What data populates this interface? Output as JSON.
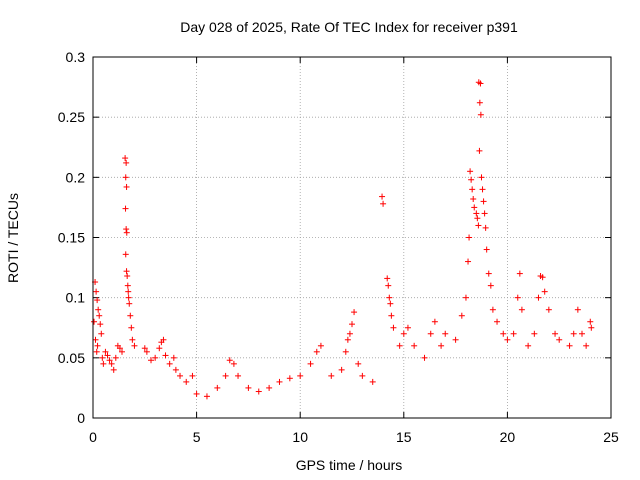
{
  "chart_data": {
    "type": "scatter",
    "title": "Day 028 of 2025, Rate Of TEC Index for receiver p391",
    "xlabel": "GPS time / hours",
    "ylabel": "ROTI / TECUs",
    "xlim": [
      0,
      25
    ],
    "ylim": [
      0,
      0.3
    ],
    "x_ticks": [
      0,
      5,
      10,
      15,
      20,
      25
    ],
    "y_ticks": [
      0,
      0.05,
      0.1,
      0.15,
      0.2,
      0.25,
      0.3
    ],
    "x_tick_labels": [
      "0",
      "5",
      "10",
      "15",
      "20",
      "25"
    ],
    "y_tick_labels": [
      "0",
      "0.05",
      "0.1",
      "0.15",
      "0.2",
      "0.25",
      "0.3"
    ],
    "grid": true,
    "marker": "+",
    "marker_color": "#ff0000",
    "series": [
      {
        "name": "ROTI",
        "points": [
          [
            0.1,
            0.113
          ],
          [
            0.15,
            0.105
          ],
          [
            0.2,
            0.098
          ],
          [
            0.25,
            0.09
          ],
          [
            0.3,
            0.085
          ],
          [
            0.05,
            0.08
          ],
          [
            0.35,
            0.078
          ],
          [
            0.4,
            0.07
          ],
          [
            0.12,
            0.065
          ],
          [
            0.22,
            0.06
          ],
          [
            0.18,
            0.055
          ],
          [
            0.45,
            0.05
          ],
          [
            0.5,
            0.045
          ],
          [
            0.6,
            0.055
          ],
          [
            0.7,
            0.052
          ],
          [
            0.8,
            0.048
          ],
          [
            0.9,
            0.045
          ],
          [
            1.0,
            0.04
          ],
          [
            1.1,
            0.05
          ],
          [
            1.2,
            0.06
          ],
          [
            1.3,
            0.058
          ],
          [
            1.4,
            0.055
          ],
          [
            1.55,
            0.216
          ],
          [
            1.6,
            0.212
          ],
          [
            1.58,
            0.2
          ],
          [
            1.62,
            0.192
          ],
          [
            1.57,
            0.174
          ],
          [
            1.6,
            0.157
          ],
          [
            1.63,
            0.154
          ],
          [
            1.58,
            0.136
          ],
          [
            1.62,
            0.122
          ],
          [
            1.65,
            0.118
          ],
          [
            1.68,
            0.11
          ],
          [
            1.7,
            0.105
          ],
          [
            1.72,
            0.1
          ],
          [
            1.75,
            0.095
          ],
          [
            1.8,
            0.085
          ],
          [
            1.85,
            0.075
          ],
          [
            1.9,
            0.065
          ],
          [
            2.0,
            0.06
          ],
          [
            2.5,
            0.058
          ],
          [
            2.6,
            0.055
          ],
          [
            2.8,
            0.048
          ],
          [
            3.0,
            0.05
          ],
          [
            3.2,
            0.058
          ],
          [
            3.3,
            0.063
          ],
          [
            3.4,
            0.065
          ],
          [
            3.5,
            0.052
          ],
          [
            3.7,
            0.045
          ],
          [
            3.9,
            0.05
          ],
          [
            4.0,
            0.04
          ],
          [
            4.2,
            0.035
          ],
          [
            4.5,
            0.03
          ],
          [
            4.8,
            0.035
          ],
          [
            5.0,
            0.02
          ],
          [
            5.5,
            0.018
          ],
          [
            6.0,
            0.025
          ],
          [
            6.4,
            0.035
          ],
          [
            6.6,
            0.048
          ],
          [
            6.8,
            0.045
          ],
          [
            7.0,
            0.035
          ],
          [
            7.5,
            0.025
          ],
          [
            8.0,
            0.022
          ],
          [
            8.5,
            0.025
          ],
          [
            9.0,
            0.03
          ],
          [
            9.5,
            0.033
          ],
          [
            10.0,
            0.035
          ],
          [
            10.5,
            0.045
          ],
          [
            10.8,
            0.055
          ],
          [
            11.0,
            0.06
          ],
          [
            11.5,
            0.035
          ],
          [
            12.0,
            0.04
          ],
          [
            12.2,
            0.055
          ],
          [
            12.3,
            0.065
          ],
          [
            12.4,
            0.07
          ],
          [
            12.5,
            0.078
          ],
          [
            12.6,
            0.088
          ],
          [
            12.8,
            0.045
          ],
          [
            13.0,
            0.035
          ],
          [
            13.5,
            0.03
          ],
          [
            13.95,
            0.184
          ],
          [
            14.0,
            0.178
          ],
          [
            14.2,
            0.116
          ],
          [
            14.25,
            0.11
          ],
          [
            14.3,
            0.1
          ],
          [
            14.35,
            0.095
          ],
          [
            14.4,
            0.085
          ],
          [
            14.5,
            0.075
          ],
          [
            14.8,
            0.06
          ],
          [
            15.0,
            0.07
          ],
          [
            15.2,
            0.075
          ],
          [
            15.5,
            0.06
          ],
          [
            16.0,
            0.05
          ],
          [
            16.3,
            0.07
          ],
          [
            16.5,
            0.08
          ],
          [
            16.8,
            0.06
          ],
          [
            17.0,
            0.07
          ],
          [
            17.5,
            0.065
          ],
          [
            17.8,
            0.085
          ],
          [
            18.0,
            0.1
          ],
          [
            18.1,
            0.13
          ],
          [
            18.15,
            0.15
          ],
          [
            18.2,
            0.205
          ],
          [
            18.25,
            0.198
          ],
          [
            18.3,
            0.19
          ],
          [
            18.35,
            0.182
          ],
          [
            18.4,
            0.175
          ],
          [
            18.5,
            0.17
          ],
          [
            18.55,
            0.166
          ],
          [
            18.6,
            0.16
          ],
          [
            18.65,
            0.222
          ],
          [
            18.62,
            0.279
          ],
          [
            18.7,
            0.278
          ],
          [
            18.67,
            0.262
          ],
          [
            18.72,
            0.252
          ],
          [
            18.75,
            0.2
          ],
          [
            18.8,
            0.19
          ],
          [
            18.85,
            0.18
          ],
          [
            18.9,
            0.17
          ],
          [
            18.95,
            0.158
          ],
          [
            19.0,
            0.14
          ],
          [
            19.1,
            0.12
          ],
          [
            19.2,
            0.11
          ],
          [
            19.3,
            0.09
          ],
          [
            19.5,
            0.08
          ],
          [
            19.8,
            0.07
          ],
          [
            20.0,
            0.065
          ],
          [
            20.3,
            0.07
          ],
          [
            20.5,
            0.1
          ],
          [
            20.6,
            0.12
          ],
          [
            20.7,
            0.09
          ],
          [
            21.0,
            0.06
          ],
          [
            21.3,
            0.07
          ],
          [
            21.5,
            0.1
          ],
          [
            21.6,
            0.118
          ],
          [
            21.7,
            0.117
          ],
          [
            21.8,
            0.105
          ],
          [
            22.0,
            0.09
          ],
          [
            22.3,
            0.07
          ],
          [
            22.5,
            0.065
          ],
          [
            23.0,
            0.06
          ],
          [
            23.2,
            0.07
          ],
          [
            23.4,
            0.09
          ],
          [
            23.6,
            0.07
          ],
          [
            23.8,
            0.06
          ],
          [
            24.0,
            0.08
          ],
          [
            24.05,
            0.075
          ]
        ]
      }
    ]
  }
}
